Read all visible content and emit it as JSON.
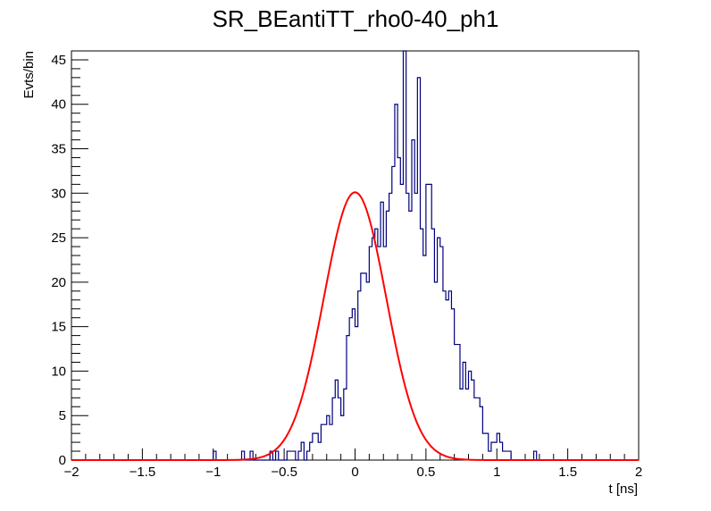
{
  "chart_data": {
    "type": "histogram",
    "title": "SR_BEantiTT_rho0-40_ph1",
    "xlabel": "t [ns]",
    "ylabel": "Evts/bin",
    "xlim": [
      -2,
      2
    ],
    "ylim": [
      0,
      46
    ],
    "x_major_ticks": [
      -2,
      -1.5,
      -1,
      -0.5,
      0,
      0.5,
      1,
      1.5,
      2
    ],
    "x_tick_labels": [
      "−2",
      "−1.5",
      "−1",
      "−0.5",
      "0",
      "0.5",
      "1",
      "1.5",
      "2"
    ],
    "y_major_ticks": [
      0,
      5,
      10,
      15,
      20,
      25,
      30,
      35,
      40,
      45
    ],
    "y_tick_labels": [
      "0",
      "5",
      "10",
      "15",
      "20",
      "25",
      "30",
      "35",
      "40",
      "45"
    ],
    "grid": false,
    "legend": "none",
    "colors": {
      "histogram": "#00007f",
      "fit": "#ff0000",
      "frame": "#000000"
    },
    "histogram": {
      "bin_start": -2,
      "bin_width": 0.02,
      "counts": [
        0,
        0,
        0,
        0,
        0,
        0,
        0,
        0,
        0,
        0,
        0,
        0,
        0,
        0,
        0,
        0,
        0,
        0,
        0,
        0,
        0,
        0,
        0,
        0,
        0,
        0,
        0,
        0,
        0,
        0,
        0,
        0,
        0,
        0,
        0,
        0,
        0,
        0,
        0,
        0,
        0,
        0,
        0,
        0,
        0,
        0,
        0,
        0,
        0,
        0,
        1,
        0,
        0,
        0,
        0,
        0,
        0,
        0,
        0,
        0,
        1,
        0,
        0,
        1,
        0,
        0,
        0,
        0,
        0,
        0,
        1,
        0,
        1,
        0,
        0,
        0,
        1,
        1,
        1,
        0,
        1,
        2,
        0,
        1,
        2,
        3,
        3,
        2,
        4,
        4,
        5,
        4,
        7,
        9,
        7,
        5,
        8,
        14,
        16,
        17,
        15,
        19,
        21,
        21,
        20,
        24,
        25,
        26,
        24,
        29,
        24,
        28,
        30,
        33,
        40,
        34,
        31,
        46,
        30,
        28,
        36,
        30,
        43,
        26,
        23,
        31,
        31,
        26,
        20,
        25,
        24,
        19,
        18,
        19,
        17,
        13,
        13,
        8,
        11,
        8,
        10,
        9,
        7,
        7,
        6,
        3,
        3,
        1,
        2,
        2,
        3,
        2,
        1,
        1,
        1,
        0,
        0,
        0,
        0,
        0,
        0,
        0,
        0,
        1,
        0,
        0,
        0,
        0,
        0,
        0,
        0,
        0,
        0,
        0,
        0,
        0,
        0,
        0,
        0,
        0,
        0,
        0,
        0,
        0,
        0,
        0,
        0,
        0,
        0,
        0,
        0,
        0,
        0,
        0,
        0,
        0,
        0,
        0,
        0
      ]
    },
    "fit": {
      "function": "gaussian",
      "amplitude": 30.1,
      "mean": 0.0,
      "sigma": 0.22
    }
  }
}
